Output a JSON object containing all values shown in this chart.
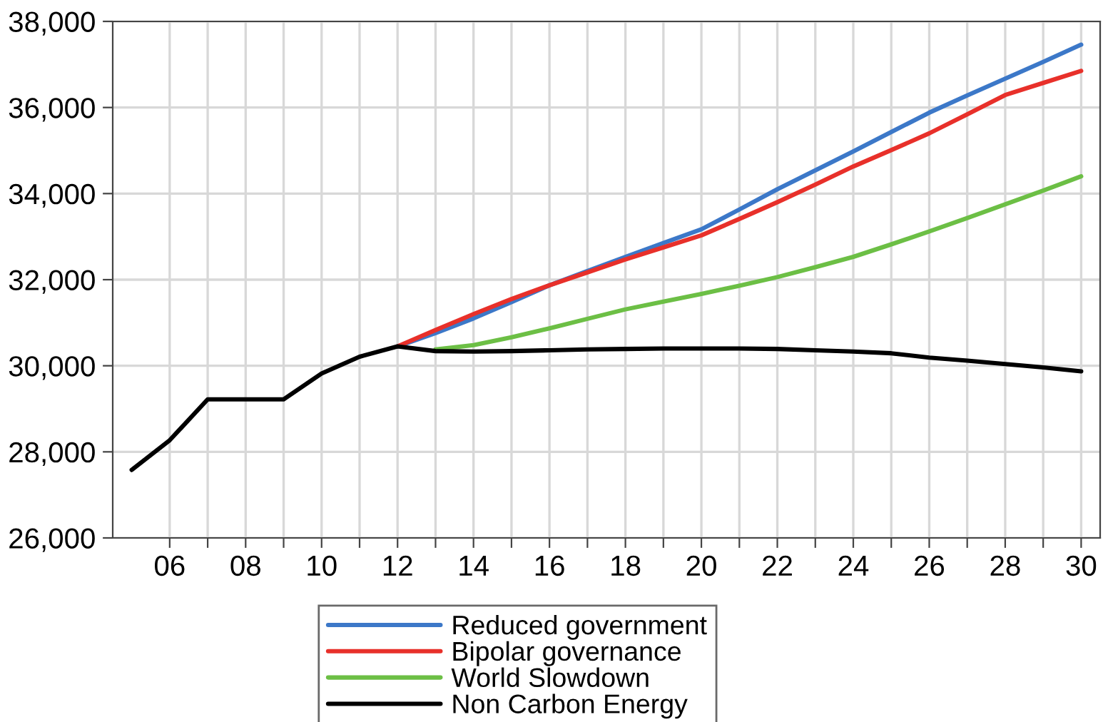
{
  "chart_data": {
    "type": "line",
    "xlim": [
      2004.5,
      2030.5
    ],
    "xticks": [
      {
        "value": 2006,
        "label": "06"
      },
      {
        "value": 2007,
        "label": null
      },
      {
        "value": 2008,
        "label": "08"
      },
      {
        "value": 2009,
        "label": null
      },
      {
        "value": 2010,
        "label": "10"
      },
      {
        "value": 2011,
        "label": null
      },
      {
        "value": 2012,
        "label": "12"
      },
      {
        "value": 2013,
        "label": null
      },
      {
        "value": 2014,
        "label": "14"
      },
      {
        "value": 2015,
        "label": null
      },
      {
        "value": 2016,
        "label": "16"
      },
      {
        "value": 2017,
        "label": null
      },
      {
        "value": 2018,
        "label": "18"
      },
      {
        "value": 2019,
        "label": null
      },
      {
        "value": 2020,
        "label": "20"
      },
      {
        "value": 2021,
        "label": null
      },
      {
        "value": 2022,
        "label": "22"
      },
      {
        "value": 2023,
        "label": null
      },
      {
        "value": 2024,
        "label": "24"
      },
      {
        "value": 2025,
        "label": null
      },
      {
        "value": 2026,
        "label": "26"
      },
      {
        "value": 2027,
        "label": null
      },
      {
        "value": 2028,
        "label": "28"
      },
      {
        "value": 2029,
        "label": null
      },
      {
        "value": 2030,
        "label": "30"
      }
    ],
    "ylim": [
      26000,
      38000
    ],
    "yticks": [
      {
        "value": 26000,
        "label": "26,000"
      },
      {
        "value": 28000,
        "label": "28,000"
      },
      {
        "value": 30000,
        "label": "30,000"
      },
      {
        "value": 32000,
        "label": "32,000"
      },
      {
        "value": 34000,
        "label": "34,000"
      },
      {
        "value": 36000,
        "label": "36,000"
      },
      {
        "value": 38000,
        "label": "38,000"
      }
    ],
    "grid": true,
    "legend": "bottom",
    "line_style": "solid",
    "series": [
      {
        "name": "Reduced government",
        "color": "#3c78c8",
        "x": [
          2012,
          2013,
          2014,
          2015,
          2016,
          2017,
          2018,
          2019,
          2020,
          2021,
          2022,
          2023,
          2024,
          2025,
          2026,
          2027,
          2028,
          2029,
          2030
        ],
        "values": [
          30450,
          30760,
          31100,
          31480,
          31870,
          32200,
          32530,
          32850,
          33170,
          33630,
          34100,
          34540,
          34980,
          35430,
          35880,
          36280,
          36670,
          37060,
          37460
        ]
      },
      {
        "name": "Bipolar governance",
        "color": "#e8302a",
        "x": [
          2012,
          2013,
          2014,
          2015,
          2016,
          2017,
          2018,
          2019,
          2020,
          2021,
          2022,
          2023,
          2024,
          2025,
          2026,
          2027,
          2028,
          2029,
          2030
        ],
        "values": [
          30450,
          30830,
          31200,
          31550,
          31870,
          32170,
          32470,
          32750,
          33030,
          33410,
          33800,
          34210,
          34630,
          35010,
          35400,
          35840,
          36290,
          36570,
          36850
        ]
      },
      {
        "name": "World Slowdown",
        "color": "#6cbf45",
        "x": [
          2013,
          2014,
          2015,
          2016,
          2017,
          2018,
          2019,
          2020,
          2021,
          2022,
          2023,
          2024,
          2025,
          2026,
          2027,
          2028,
          2029,
          2030
        ],
        "values": [
          30380,
          30480,
          30660,
          30870,
          31090,
          31310,
          31490,
          31670,
          31860,
          32060,
          32290,
          32530,
          32820,
          33120,
          33430,
          33750,
          34070,
          34400
        ]
      },
      {
        "name": "Non Carbon Energy",
        "color": "#000000",
        "x": [
          2005,
          2006,
          2007,
          2008,
          2009,
          2010,
          2011,
          2012,
          2013,
          2014,
          2015,
          2016,
          2017,
          2018,
          2019,
          2020,
          2021,
          2022,
          2023,
          2024,
          2025,
          2026,
          2027,
          2028,
          2029,
          2030
        ],
        "values": [
          27580,
          28270,
          29220,
          29220,
          29220,
          29820,
          30210,
          30450,
          30340,
          30330,
          30340,
          30360,
          30380,
          30390,
          30400,
          30400,
          30400,
          30390,
          30360,
          30330,
          30290,
          30190,
          30120,
          30040,
          29960,
          29870
        ]
      }
    ]
  }
}
